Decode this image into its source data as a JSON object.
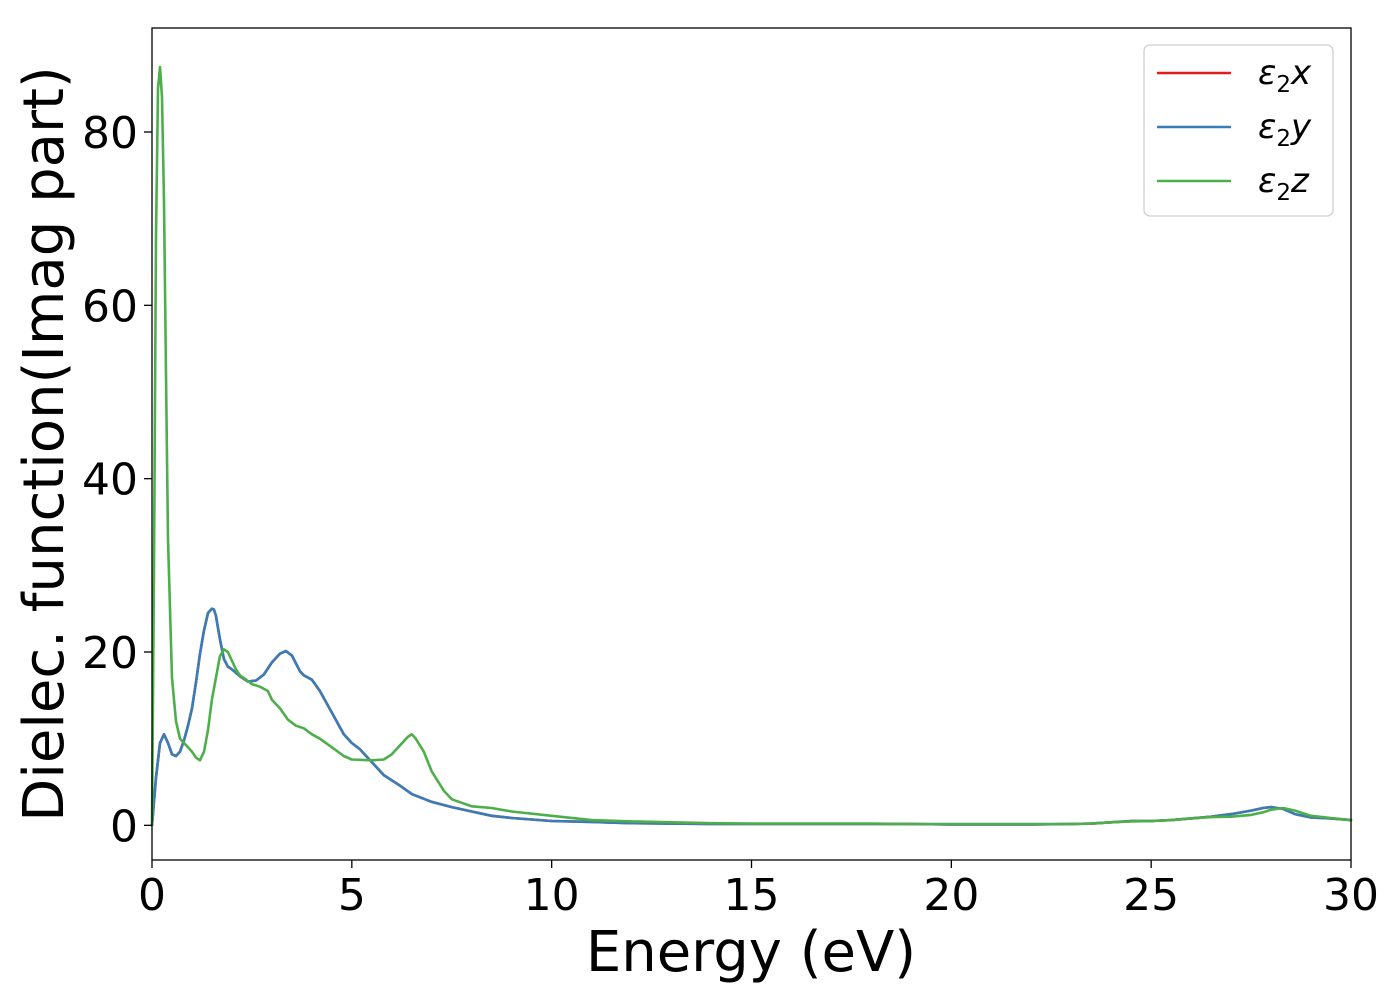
{
  "chart_data": {
    "type": "line",
    "title": "",
    "xlabel": "Energy (eV)",
    "ylabel": "Dielec. function(Imag part)",
    "xlim": [
      0,
      30
    ],
    "ylim": [
      -4,
      92
    ],
    "xticks": [
      0,
      5,
      10,
      15,
      20,
      25,
      30
    ],
    "yticks": [
      0,
      20,
      40,
      60,
      80
    ],
    "grid": false,
    "legend_position": "top-right",
    "series": [
      {
        "name": "ε2x",
        "legend_base": "ε",
        "legend_sub": "2",
        "legend_suffix": "x",
        "color": "#e41a1c",
        "x": [
          0,
          0.1,
          0.2,
          0.3,
          0.4,
          0.5,
          0.6,
          0.7,
          0.8,
          0.9,
          1.0,
          1.1,
          1.2,
          1.3,
          1.4,
          1.5,
          1.55,
          1.6,
          1.7,
          1.8,
          1.9,
          2.0,
          2.2,
          2.4,
          2.6,
          2.8,
          3.0,
          3.2,
          3.35,
          3.5,
          3.7,
          3.8,
          4.0,
          4.2,
          4.5,
          4.8,
          5.0,
          5.2,
          5.5,
          5.8,
          6.0,
          6.2,
          6.5,
          7.0,
          7.5,
          8.0,
          8.5,
          9.0,
          10.0,
          11.0,
          12.0,
          13.0,
          14.0,
          15.0,
          16.0,
          17.0,
          18.0,
          19.0,
          20.0,
          21.0,
          22.0,
          23.0,
          23.5,
          24.0,
          24.5,
          25.0,
          25.5,
          26.0,
          26.5,
          27.0,
          27.5,
          27.8,
          28.0,
          28.3,
          28.6,
          29.0,
          29.5,
          30.0
        ],
        "y": [
          0,
          5.5,
          9.5,
          10.5,
          9.5,
          8.2,
          8,
          8.5,
          9.8,
          11.5,
          13.5,
          16.5,
          19.8,
          22.5,
          24.5,
          25,
          24.9,
          24.2,
          21.5,
          19.2,
          18.3,
          18.0,
          17.2,
          16.6,
          16.7,
          17.4,
          18.8,
          19.8,
          20.1,
          19.6,
          17.8,
          17.3,
          16.8,
          15.5,
          13,
          10.5,
          9.5,
          8.8,
          7.3,
          5.8,
          5.2,
          4.6,
          3.6,
          2.7,
          2.1,
          1.6,
          1.1,
          0.85,
          0.5,
          0.4,
          0.25,
          0.2,
          0.15,
          0.15,
          0.15,
          0.15,
          0.15,
          0.15,
          0.1,
          0.1,
          0.1,
          0.15,
          0.2,
          0.35,
          0.5,
          0.5,
          0.6,
          0.8,
          1.0,
          1.3,
          1.7,
          2.0,
          2.1,
          1.9,
          1.3,
          0.9,
          0.8,
          0.6
        ]
      },
      {
        "name": "ε2y",
        "legend_base": "ε",
        "legend_sub": "2",
        "legend_suffix": "y",
        "color": "#377eb8",
        "x": [
          0,
          0.1,
          0.2,
          0.3,
          0.4,
          0.5,
          0.6,
          0.7,
          0.8,
          0.9,
          1.0,
          1.1,
          1.2,
          1.3,
          1.4,
          1.5,
          1.55,
          1.6,
          1.7,
          1.8,
          1.9,
          2.0,
          2.2,
          2.4,
          2.6,
          2.8,
          3.0,
          3.2,
          3.35,
          3.5,
          3.7,
          3.8,
          4.0,
          4.2,
          4.5,
          4.8,
          5.0,
          5.2,
          5.5,
          5.8,
          6.0,
          6.2,
          6.5,
          7.0,
          7.5,
          8.0,
          8.5,
          9.0,
          10.0,
          11.0,
          12.0,
          13.0,
          14.0,
          15.0,
          16.0,
          17.0,
          18.0,
          19.0,
          20.0,
          21.0,
          22.0,
          23.0,
          23.5,
          24.0,
          24.5,
          25.0,
          25.5,
          26.0,
          26.5,
          27.0,
          27.5,
          27.8,
          28.0,
          28.3,
          28.6,
          29.0,
          29.5,
          30.0
        ],
        "y": [
          0,
          5.5,
          9.5,
          10.5,
          9.5,
          8.2,
          8,
          8.5,
          9.8,
          11.5,
          13.5,
          16.5,
          19.8,
          22.5,
          24.5,
          25,
          24.9,
          24.2,
          21.5,
          19.2,
          18.3,
          18.0,
          17.2,
          16.6,
          16.7,
          17.4,
          18.8,
          19.8,
          20.1,
          19.6,
          17.8,
          17.3,
          16.8,
          15.5,
          13,
          10.5,
          9.5,
          8.8,
          7.3,
          5.8,
          5.2,
          4.6,
          3.6,
          2.7,
          2.1,
          1.6,
          1.1,
          0.85,
          0.5,
          0.4,
          0.25,
          0.2,
          0.15,
          0.15,
          0.15,
          0.15,
          0.15,
          0.15,
          0.1,
          0.1,
          0.1,
          0.15,
          0.2,
          0.35,
          0.5,
          0.5,
          0.6,
          0.8,
          1.0,
          1.3,
          1.7,
          2.0,
          2.1,
          1.9,
          1.3,
          0.9,
          0.8,
          0.6
        ]
      },
      {
        "name": "ε2z",
        "legend_base": "ε",
        "legend_sub": "2",
        "legend_suffix": "z",
        "color": "#4daf4a",
        "x": [
          0,
          0.05,
          0.1,
          0.15,
          0.2,
          0.25,
          0.3,
          0.35,
          0.4,
          0.5,
          0.6,
          0.7,
          0.8,
          0.9,
          1.0,
          1.1,
          1.2,
          1.3,
          1.4,
          1.5,
          1.6,
          1.7,
          1.8,
          1.9,
          2.0,
          2.1,
          2.2,
          2.3,
          2.5,
          2.7,
          2.9,
          3.0,
          3.2,
          3.4,
          3.6,
          3.8,
          4.0,
          4.2,
          4.5,
          4.8,
          5.0,
          5.5,
          5.8,
          6.0,
          6.2,
          6.4,
          6.5,
          6.6,
          6.8,
          7.0,
          7.3,
          7.5,
          8.0,
          8.5,
          9.0,
          10.0,
          11.0,
          12.0,
          13.0,
          14.0,
          15.0,
          16.0,
          17.0,
          18.0,
          19.0,
          20.0,
          21.0,
          22.0,
          23.0,
          23.5,
          24.0,
          24.5,
          25.0,
          25.5,
          26.0,
          26.5,
          27.0,
          27.5,
          27.8,
          28.0,
          28.3,
          28.6,
          29.0,
          29.5,
          30.0
        ],
        "y": [
          0,
          30,
          68,
          85,
          87.5,
          84,
          72,
          52,
          33,
          17,
          12,
          10,
          9.5,
          9,
          8.5,
          7.8,
          7.5,
          8.5,
          11,
          14.5,
          17,
          19.5,
          20.3,
          20,
          19,
          18,
          17.3,
          17,
          16.3,
          16,
          15.5,
          14.5,
          13.5,
          12.2,
          11.5,
          11.2,
          10.5,
          10,
          9,
          8,
          7.6,
          7.5,
          7.6,
          8.2,
          9.2,
          10.2,
          10.5,
          10,
          8.5,
          6.2,
          4,
          3,
          2.2,
          2,
          1.6,
          1.1,
          0.6,
          0.45,
          0.35,
          0.25,
          0.2,
          0.2,
          0.2,
          0.2,
          0.15,
          0.15,
          0.15,
          0.15,
          0.15,
          0.2,
          0.35,
          0.45,
          0.5,
          0.6,
          0.8,
          0.95,
          1.0,
          1.2,
          1.5,
          1.8,
          2.0,
          1.7,
          1.1,
          0.85,
          0.6
        ]
      }
    ]
  }
}
